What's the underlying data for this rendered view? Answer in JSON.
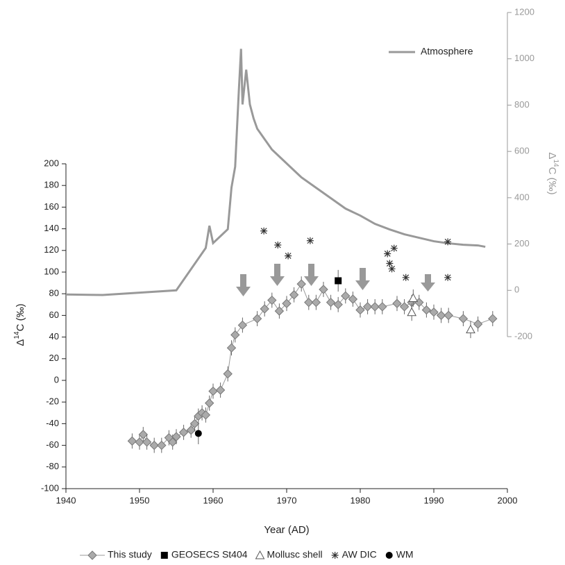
{
  "chart_data": {
    "type": "scatter",
    "xlabel": "Year (AD)",
    "ylabel": {
      "prefix": "Δ",
      "sup": "14",
      "suffix": "C (‰)"
    },
    "y2label": {
      "prefix": "Δ",
      "sup": "14",
      "suffix": "C (‰)"
    },
    "xlim": [
      1940,
      2000
    ],
    "xticks": [
      1940,
      1950,
      1960,
      1970,
      1980,
      1990,
      2000
    ],
    "ylim": [
      -100,
      200
    ],
    "yticks": [
      -100,
      -80,
      -60,
      -40,
      -20,
      0,
      20,
      40,
      60,
      80,
      100,
      120,
      140,
      160,
      180,
      200
    ],
    "y2lim": [
      -200,
      1200
    ],
    "y2ticks": [
      -200,
      0,
      200,
      400,
      600,
      800,
      1000,
      1200
    ],
    "legend": "bottom",
    "series": [
      {
        "name": "Atmosphere",
        "color": "#999999",
        "axis": "y2",
        "marker": "line",
        "x": [
          1940,
          1945,
          1955,
          1959,
          1959.5,
          1960,
          1961,
          1962,
          1962.5,
          1963,
          1963.5,
          1963.8,
          1964,
          1964.5,
          1965,
          1965.5,
          1966,
          1967,
          1968,
          1970,
          1972,
          1974,
          1976,
          1978,
          1980,
          1982,
          1984,
          1986,
          1988,
          1990,
          1992,
          1994,
          1996,
          1997
        ],
        "values": [
          -18,
          -20,
          0,
          183,
          279,
          204,
          234,
          264,
          444,
          534,
          863,
          1043,
          803,
          953,
          803,
          743,
          698,
          653,
          608,
          548,
          488,
          443,
          398,
          353,
          323,
          287,
          263,
          242,
          227,
          212,
          203,
          197,
          194,
          188
        ]
      },
      {
        "name": "This study",
        "color": "#aaaaaa",
        "marker": "diamond",
        "x": [
          1949,
          1950,
          1950.5,
          1951,
          1952,
          1953,
          1954,
          1954.5,
          1955,
          1956,
          1957,
          1957.5,
          1958,
          1958.5,
          1959,
          1959.5,
          1960,
          1961,
          1962,
          1962.5,
          1963,
          1964,
          1966,
          1967,
          1968,
          1969,
          1970,
          1971,
          1972,
          1973,
          1974,
          1975,
          1976,
          1977,
          1978,
          1979,
          1980,
          1981,
          1982,
          1983,
          1985,
          1986,
          1987,
          1988,
          1989,
          1990,
          1991,
          1992,
          1994,
          1996,
          1998
        ],
        "values": [
          -56,
          -57,
          -50,
          -57,
          -60,
          -60,
          -53,
          -57,
          -52,
          -48,
          -46,
          -40,
          -33,
          -30,
          -32,
          -21,
          -10,
          -9,
          6,
          30,
          42,
          51,
          57,
          66,
          74,
          64,
          71,
          79,
          89,
          72,
          72,
          84,
          72,
          70,
          78,
          75,
          65,
          68,
          68,
          68,
          71,
          68,
          72,
          72,
          65,
          63,
          60,
          60,
          57,
          52,
          57
        ],
        "errors": [
          7,
          7,
          7,
          7,
          7,
          7,
          7,
          7,
          7,
          7,
          7,
          7,
          7,
          7,
          7,
          7,
          7,
          7,
          7,
          7,
          7,
          7,
          7,
          7,
          7,
          7,
          7,
          7,
          7,
          7,
          7,
          7,
          7,
          7,
          7,
          7,
          7,
          7,
          7,
          7,
          7,
          7,
          7,
          7,
          7,
          7,
          7,
          7,
          7,
          7,
          7
        ]
      },
      {
        "name": "GEOSECS St404",
        "color": "#000000",
        "marker": "square",
        "x": [
          1977
        ],
        "values": [
          92
        ],
        "errors": [
          10
        ]
      },
      {
        "name": "Mollusc shell",
        "color": "#ffffff",
        "marker": "triangle",
        "x": [
          1987.2,
          1987,
          1995
        ],
        "values": [
          76,
          63,
          47
        ],
        "errors": [
          8,
          8,
          8
        ]
      },
      {
        "name": "AW DIC",
        "color": "#333333",
        "marker": "asterisk",
        "x": [
          1966.9,
          1968.8,
          1970.2,
          1973.2,
          1983.7,
          1984.6,
          1984,
          1984.3,
          1986.2,
          1991.9,
          1991.9
        ],
        "values": [
          138,
          125,
          115,
          129,
          117,
          122,
          108,
          103,
          95,
          128,
          95
        ]
      },
      {
        "name": "WM",
        "color": "#000000",
        "marker": "circle",
        "x": [
          1958
        ],
        "values": [
          -49
        ],
        "errors": [
          10
        ]
      }
    ]
  }
}
